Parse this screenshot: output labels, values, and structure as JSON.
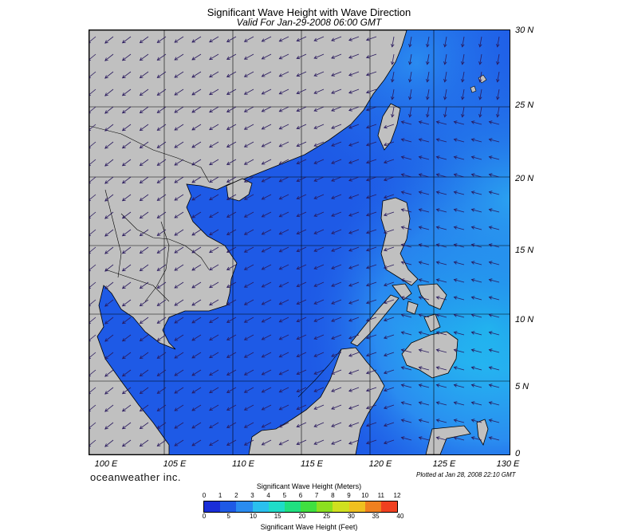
{
  "title": "Significant Wave Height with Wave Direction",
  "subtitle": "Valid For Jan-29-2008 06:00 GMT",
  "lat_labels": [
    "30 N",
    "25 N",
    "20 N",
    "15 N",
    "10 N",
    "5 N",
    "0"
  ],
  "lon_labels": [
    "100 E",
    "105 E",
    "110 E",
    "115 E",
    "120 E",
    "125 E",
    "130 E"
  ],
  "brand": "oceanweather inc.",
  "plotted": "Plotted at Jan 28, 2008 22:10 GMT",
  "legend": {
    "meters_title": "Significant Wave Height (Meters)",
    "feet_title": "Significant Wave Height (Feet)",
    "meters_ticks": [
      "0",
      "1",
      "2",
      "3",
      "4",
      "5",
      "6",
      "7",
      "8",
      "9",
      "10",
      "11",
      "12"
    ],
    "feet_ticks": [
      "0",
      "5",
      "10",
      "15",
      "20",
      "25",
      "30",
      "35",
      "40"
    ]
  },
  "colors": {
    "land": "#c0c0c0",
    "sea_low": "#1e5ae6",
    "sea_mid": "#2a8cf0",
    "sea_high": "#22c8f0",
    "arrow": "#2a1a5e",
    "colorbar": [
      "#1a2ed8",
      "#1e5ae6",
      "#2a8cf0",
      "#2ac0ee",
      "#20dcc8",
      "#20e080",
      "#40e040",
      "#8ce020",
      "#d0e020",
      "#f0c020",
      "#f08020",
      "#f04020"
    ]
  }
}
